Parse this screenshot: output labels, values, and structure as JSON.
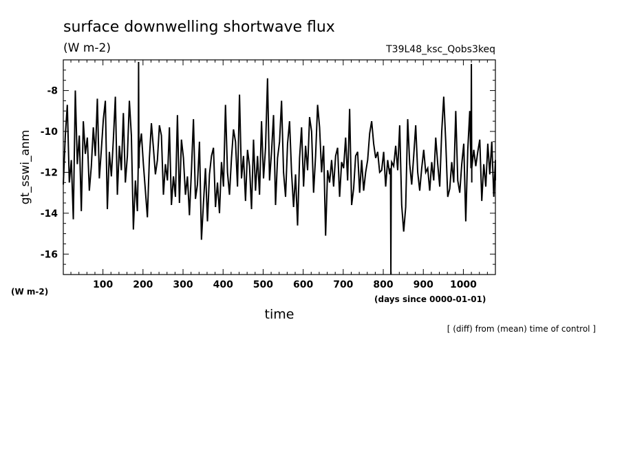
{
  "chart_data": {
    "type": "line",
    "title": "surface downwelling shortwave flux",
    "units": "(W m-2)",
    "run_label": "T39L48_ksc_Qobs3keq",
    "ylabel": "gt_sswi_anm",
    "y_axis_unit": "(W m-2)",
    "xlabel": "time",
    "x_axis_unit": "(days since 0000-01-01)",
    "note": "[ (diff) from (mean) time of control ]",
    "xlim": [
      1,
      1080
    ],
    "ylim": [
      -17,
      -6.5
    ],
    "x_ticks": [
      100,
      200,
      300,
      400,
      500,
      600,
      700,
      800,
      900,
      1000
    ],
    "x_tick_labels": [
      "100",
      "200",
      "300",
      "400",
      "500",
      "600",
      "700",
      "800",
      "900",
      "1000"
    ],
    "y_ticks": [
      -16,
      -14,
      -12,
      -10,
      -8
    ],
    "y_tick_labels": [
      "-16",
      "-14",
      "-12",
      "-10",
      "-8"
    ],
    "grid": false,
    "series": [
      {
        "x_start": 1,
        "x_step": 5,
        "values": [
          -12.6,
          -10.2,
          -8.7,
          -12.5,
          -11.4,
          -14.3,
          -8.0,
          -11.6,
          -10.2,
          -13.9,
          -9.5,
          -11.1,
          -10.3,
          -12.9,
          -11.7,
          -9.8,
          -11.2,
          -8.4,
          -12.3,
          -10.9,
          -9.4,
          -8.5,
          -13.8,
          -11.0,
          -12.2,
          -10.4,
          -8.3,
          -13.1,
          -10.7,
          -11.9,
          -9.1,
          -12.5,
          -11.2,
          -8.5,
          -10.2,
          -14.8,
          -12.4,
          -13.9,
          -10.8,
          -10.1,
          -11.6,
          -12.9,
          -14.2,
          -11.3,
          -9.6,
          -10.8,
          -12.1,
          -11.4,
          -9.7,
          -10.2,
          -13.1,
          -11.6,
          -12.4,
          -9.8,
          -13.6,
          -12.2,
          -13.2,
          -9.2,
          -13.5,
          -10.4,
          -11.3,
          -13.1,
          -12.2,
          -14.1,
          -11.9,
          -9.4,
          -13.3,
          -12.6,
          -10.5,
          -15.3,
          -13.5,
          -11.8,
          -14.4,
          -12.1,
          -11.2,
          -10.8,
          -13.7,
          -12.5,
          -14.0,
          -11.5,
          -12.7,
          -8.7,
          -12.0,
          -13.1,
          -11.3,
          -9.9,
          -10.5,
          -12.7,
          -8.2,
          -12.3,
          -11.2,
          -13.4,
          -10.9,
          -11.7,
          -13.8,
          -10.4,
          -12.9,
          -11.2,
          -13.1,
          -9.5,
          -12.3,
          -10.8,
          -7.4,
          -12.4,
          -11.0,
          -9.2,
          -13.6,
          -11.3,
          -10.5,
          -8.5,
          -12.0,
          -13.2,
          -10.6,
          -9.5,
          -12.0,
          -13.7,
          -12.1,
          -14.6,
          -11.3,
          -9.8,
          -12.7,
          -10.7,
          -11.9,
          -9.3,
          -10.0,
          -13.0,
          -11.2,
          -8.7,
          -9.8,
          -12.0,
          -10.7,
          -15.1,
          -11.9,
          -12.5,
          -11.4,
          -12.7,
          -11.2,
          -10.8,
          -13.2,
          -11.5,
          -11.8,
          -10.3,
          -12.4,
          -8.9,
          -13.6,
          -12.8,
          -11.2,
          -11.0,
          -13.0,
          -11.4,
          -12.9,
          -12.0,
          -11.4,
          -10.1,
          -9.5,
          -10.6,
          -11.3,
          -11.0,
          -12.0,
          -11.9,
          -11.0,
          -12.7,
          -11.4,
          -12.1,
          -11.5,
          -11.7,
          -10.7,
          -11.9,
          -9.7,
          -13.6,
          -14.9,
          -13.7,
          -9.4,
          -11.6,
          -12.6,
          -11.2,
          -9.7,
          -12.0,
          -12.9,
          -11.8,
          -10.9,
          -12.0,
          -11.8,
          -12.9,
          -11.5,
          -12.4,
          -10.3,
          -11.6,
          -12.7,
          -10.0,
          -8.3,
          -10.5,
          -13.2,
          -12.8,
          -11.5,
          -12.5,
          -9.0,
          -12.4,
          -13.0,
          -11.6,
          -10.6,
          -14.4,
          -10.9,
          -9.0,
          -12.5,
          -10.9,
          -11.7,
          -11.0,
          -10.4,
          -13.4,
          -11.6,
          -12.7,
          -10.6,
          -12.1,
          -10.5,
          -13.2,
          -11.4,
          -12.4
        ],
        "outliers": [
          {
            "x": 189,
            "y": -6.6
          },
          {
            "x": 819,
            "y": -17.0
          },
          {
            "x": 1020,
            "y": -6.7
          }
        ]
      }
    ]
  }
}
